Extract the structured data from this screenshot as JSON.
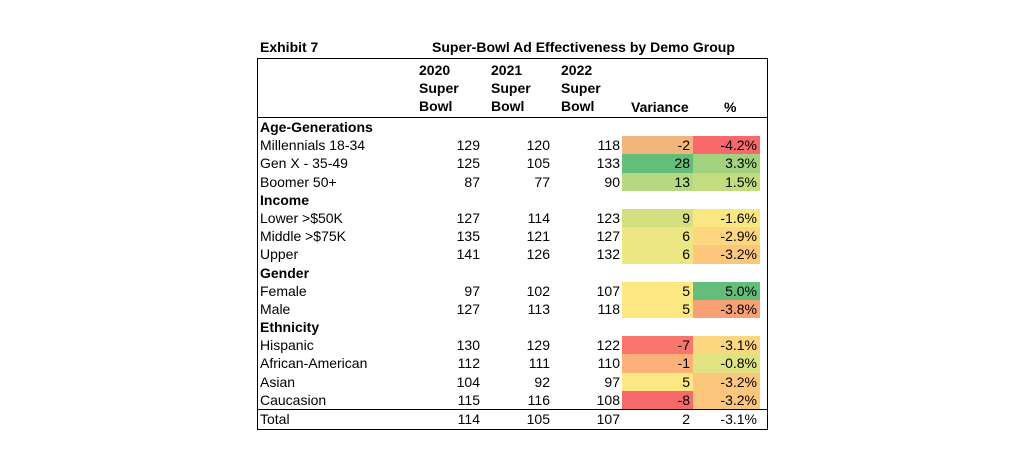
{
  "exhibit_label": "Exhibit 7",
  "title": "Super-Bowl Ad Effectiveness by Demo Group",
  "headers": {
    "y2020": [
      "2020",
      "Super",
      "Bowl"
    ],
    "y2021": [
      "2021",
      "Super",
      "Bowl"
    ],
    "y2022": [
      "2022",
      "Super",
      "Bowl"
    ],
    "variance": "Variance",
    "pct": "%"
  },
  "rows": [
    {
      "type": "section",
      "label": "Age-Generations"
    },
    {
      "type": "data",
      "label": "Millennials 18-34",
      "v2020": "129",
      "v2021": "120",
      "v2022": "118",
      "variance": "-2",
      "pct": "-4.2%",
      "var_color": "#f4b57c",
      "pct_color": "#f8696b"
    },
    {
      "type": "data",
      "label": "Gen X - 35-49",
      "v2020": "125",
      "v2021": "105",
      "v2022": "133",
      "variance": "28",
      "pct": "3.3%",
      "var_color": "#63be7b",
      "pct_color": "#a3d27f"
    },
    {
      "type": "data",
      "label": "Boomer 50+",
      "v2020": "87",
      "v2021": "77",
      "v2022": "90",
      "variance": "13",
      "pct": "1.5%",
      "var_color": "#b6d87f",
      "pct_color": "#c2dc80"
    },
    {
      "type": "section",
      "label": "Income"
    },
    {
      "type": "data",
      "label": "Lower >$50K",
      "v2020": "127",
      "v2021": "114",
      "v2022": "123",
      "variance": "9",
      "pct": "-1.6%",
      "var_color": "#d4e07f",
      "pct_color": "#f9e783"
    },
    {
      "type": "data",
      "label": "Middle >$75K",
      "v2020": "135",
      "v2021": "121",
      "v2022": "127",
      "variance": "6",
      "pct": "-2.9%",
      "var_color": "#ece683",
      "pct_color": "#fdd680"
    },
    {
      "type": "data",
      "label": "Upper",
      "v2020": "141",
      "v2021": "126",
      "v2022": "132",
      "variance": "6",
      "pct": "-3.2%",
      "var_color": "#ece683",
      "pct_color": "#fcc67c"
    },
    {
      "type": "section",
      "label": "Gender"
    },
    {
      "type": "data",
      "label": "Female",
      "v2020": "97",
      "v2021": "102",
      "v2022": "107",
      "variance": "5",
      "pct": "5.0%",
      "var_color": "#fee883",
      "pct_color": "#63be7b"
    },
    {
      "type": "data",
      "label": "Male",
      "v2020": "127",
      "v2021": "113",
      "v2022": "118",
      "variance": "5",
      "pct": "-3.8%",
      "var_color": "#fee883",
      "pct_color": "#f9a075"
    },
    {
      "type": "section",
      "label": "Ethnicity"
    },
    {
      "type": "data",
      "label": "Hispanic",
      "v2020": "130",
      "v2021": "129",
      "v2022": "122",
      "variance": "-7",
      "pct": "-3.1%",
      "var_color": "#f8756e",
      "pct_color": "#fdd680"
    },
    {
      "type": "data",
      "label": "African-American",
      "v2020": "112",
      "v2021": "111",
      "v2022": "110",
      "variance": "-1",
      "pct": "-0.8%",
      "var_color": "#fbb178",
      "pct_color": "#dfe382"
    },
    {
      "type": "data",
      "label": "Asian",
      "v2020": "104",
      "v2021": "92",
      "v2022": "97",
      "variance": "5",
      "pct": "-3.2%",
      "var_color": "#fee883",
      "pct_color": "#fcc67c"
    },
    {
      "type": "data",
      "label": "Caucasion",
      "v2020": "115",
      "v2021": "116",
      "v2022": "108",
      "variance": "-8",
      "pct": "-3.2%",
      "var_color": "#f8696b",
      "pct_color": "#fcc67c"
    }
  ],
  "total": {
    "label": "Total",
    "v2020": "114",
    "v2021": "105",
    "v2022": "107",
    "variance": "2",
    "pct": "-3.1%"
  }
}
